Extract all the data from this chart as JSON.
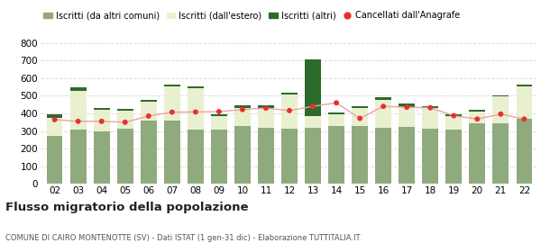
{
  "years": [
    "02",
    "03",
    "04",
    "05",
    "06",
    "07",
    "08",
    "09",
    "10",
    "11",
    "12",
    "13",
    "14",
    "15",
    "16",
    "17",
    "18",
    "19",
    "20",
    "21",
    "22"
  ],
  "iscritti_comuni": [
    275,
    308,
    300,
    315,
    360,
    360,
    310,
    310,
    328,
    318,
    315,
    317,
    330,
    330,
    320,
    322,
    315,
    310,
    345,
    345,
    370
  ],
  "iscritti_estero": [
    100,
    220,
    120,
    100,
    108,
    195,
    235,
    75,
    105,
    115,
    190,
    70,
    65,
    100,
    155,
    115,
    115,
    75,
    65,
    150,
    185
  ],
  "iscritti_altri": [
    20,
    18,
    12,
    10,
    10,
    8,
    8,
    12,
    15,
    15,
    12,
    320,
    10,
    12,
    18,
    18,
    12,
    8,
    8,
    8,
    8
  ],
  "cancellati": [
    365,
    355,
    355,
    350,
    385,
    407,
    408,
    410,
    422,
    430,
    416,
    440,
    460,
    372,
    440,
    435,
    432,
    387,
    368,
    396,
    368
  ],
  "color_comuni": "#8faa7c",
  "color_estero": "#e8f0d0",
  "color_altri": "#2d6a2d",
  "color_cancellati": "#e8302a",
  "color_line": "#f0a0a0",
  "ylim": [
    0,
    800
  ],
  "yticks": [
    0,
    100,
    200,
    300,
    400,
    500,
    600,
    700,
    800
  ],
  "title": "Flusso migratorio della popolazione",
  "subtitle": "COMUNE DI CAIRO MONTENOTTE (SV) - Dati ISTAT (1 gen-31 dic) - Elaborazione TUTTITALIA.IT",
  "legend_labels": [
    "Iscritti (da altri comuni)",
    "Iscritti (dall'estero)",
    "Iscritti (altri)",
    "Cancellati dall'Anagrafe"
  ],
  "background_color": "#ffffff",
  "grid_color": "#dddddd"
}
